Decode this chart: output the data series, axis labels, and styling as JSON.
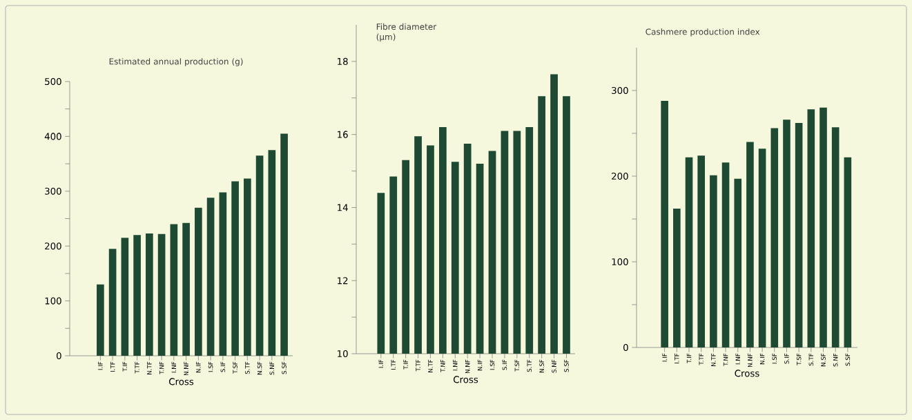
{
  "chart_data": [
    {
      "type": "bar",
      "ylabel": "Estimated annual production (g)",
      "xlabel": "Cross",
      "color": "#1e4a33",
      "categories": [
        "I.IF",
        "I.TF",
        "T.IF",
        "T.TF",
        "N.TF",
        "T.NF",
        "I.NF",
        "N.NF",
        "N.IF",
        "I.SF",
        "S.IF",
        "T.SF",
        "S.TF",
        "N.SF",
        "S.NF",
        "S.SF"
      ],
      "values": [
        130,
        195,
        215,
        220,
        223,
        222,
        240,
        242,
        270,
        288,
        298,
        318,
        323,
        365,
        375,
        405
      ],
      "ylim": [
        0,
        500
      ],
      "yticks": [
        0,
        100,
        200,
        300,
        400,
        500
      ]
    },
    {
      "type": "bar",
      "ylabel": "Fibre diameter (µm)",
      "xlabel": "Cross",
      "color": "#1e4a33",
      "categories": [
        "I.IF",
        "I.TF",
        "T.IF",
        "T.TF",
        "N.TF",
        "T.NF",
        "I.NF",
        "N.NF",
        "N.IF",
        "I.SF",
        "S.IF",
        "T.SF",
        "S.TF",
        "N.SF",
        "S.NF",
        "S.SF"
      ],
      "values": [
        14.4,
        14.85,
        15.3,
        15.95,
        15.7,
        16.2,
        15.25,
        15.75,
        15.2,
        15.55,
        16.1,
        16.1,
        16.2,
        17.05,
        17.65,
        17.05
      ],
      "ylim": [
        10,
        19
      ],
      "yticks": [
        10,
        12,
        14,
        16,
        18
      ]
    },
    {
      "type": "bar",
      "ylabel": "Cashmere production index",
      "xlabel": "Cross",
      "color": "#1e4a33",
      "categories": [
        "I.IF",
        "I.TF",
        "T.IF",
        "T.TF",
        "N.TF",
        "T.NF",
        "I.NF",
        "N.NF",
        "N.IF",
        "I.SF",
        "S.IF",
        "T.SF",
        "S.TF",
        "N.SF",
        "S.NF",
        "S.SF"
      ],
      "values": [
        288,
        162,
        222,
        224,
        201,
        216,
        197,
        240,
        232,
        256,
        266,
        262,
        278,
        280,
        257,
        222
      ],
      "ylim": [
        0,
        350
      ],
      "yticks": [
        0,
        100,
        200,
        300
      ]
    }
  ]
}
